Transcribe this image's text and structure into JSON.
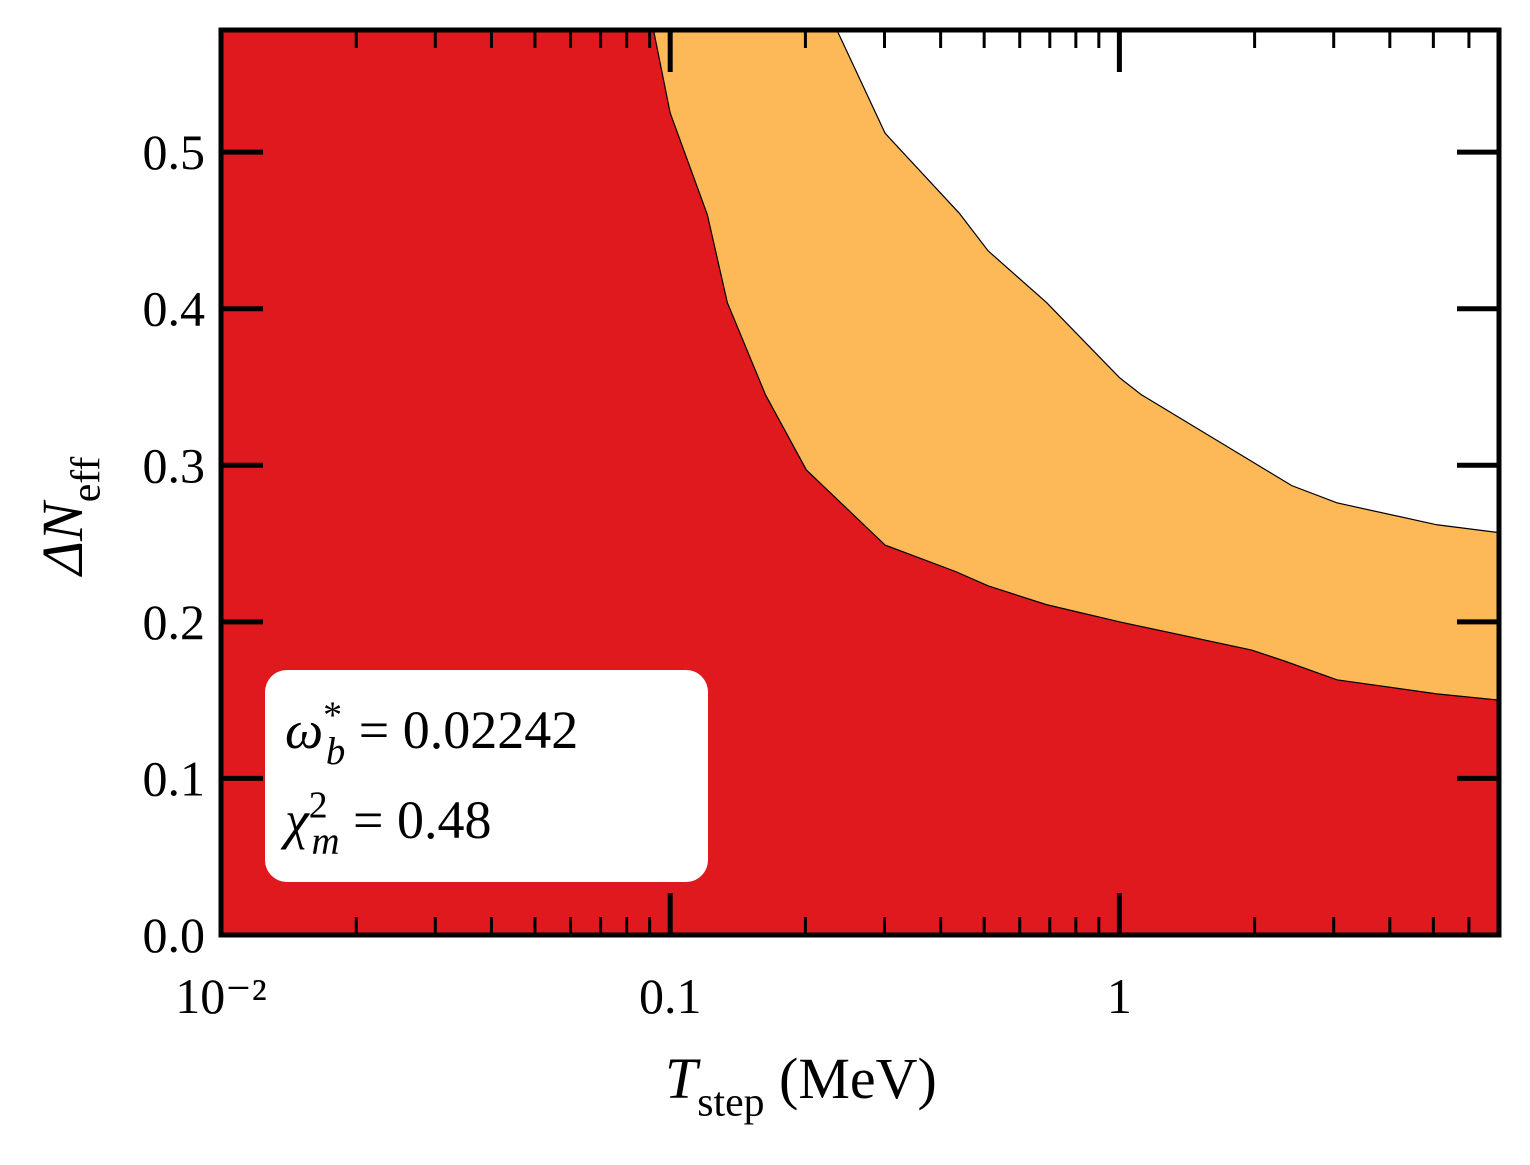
{
  "chart_data": {
    "type": "area",
    "xlabel": {
      "symbol": "T",
      "sub": "step",
      "text": "(MeV)"
    },
    "ylabel": {
      "symbol": "ΔN",
      "sub": "eff"
    },
    "xlog": true,
    "xlim": [
      0.01,
      7
    ],
    "ylim": [
      0,
      0.578
    ],
    "xticks": [
      {
        "value": 0.01,
        "label": "10⁻²"
      },
      0.1,
      1
    ],
    "xminorticks": [
      0.02,
      0.03,
      0.04,
      0.05,
      0.06,
      0.07,
      0.08,
      0.09,
      0.2,
      0.3,
      0.4,
      0.5,
      0.6,
      0.7,
      0.8,
      0.9,
      2,
      3,
      4,
      5,
      6,
      7
    ],
    "yticks": [
      {
        "value": 0,
        "label": "0.0"
      },
      0.1,
      0.2,
      0.3,
      0.4,
      0.5
    ],
    "series": [
      {
        "color": "#fdb858",
        "x": [
          0.235,
          0.301,
          0.44,
          0.51,
          0.688,
          1,
          1.12,
          2.42,
          3.05,
          5.09,
          7
        ],
        "values": [
          0.578,
          0.512,
          0.461,
          0.437,
          0.404,
          0.356,
          0.345,
          0.287,
          0.276,
          0.262,
          0.257
        ]
      },
      {
        "color": "#e0191e",
        "x": [
          0.0918,
          0.1,
          0.121,
          0.134,
          0.163,
          0.201,
          0.301,
          0.433,
          0.51,
          0.688,
          1,
          1.97,
          2.33,
          3.05,
          5.09,
          7
        ],
        "values": [
          0.578,
          0.525,
          0.46,
          0.404,
          0.345,
          0.297,
          0.249,
          0.232,
          0.223,
          0.211,
          0.2,
          0.182,
          0.175,
          0.163,
          0.154,
          0.15
        ]
      }
    ],
    "annotations": [
      {
        "symbol": "ω",
        "sup": "*",
        "sub": "b",
        "text": "= 0.02242"
      },
      {
        "symbol": "χ",
        "sup": "2",
        "sub": "m",
        "text": "= 0.48"
      }
    ]
  }
}
